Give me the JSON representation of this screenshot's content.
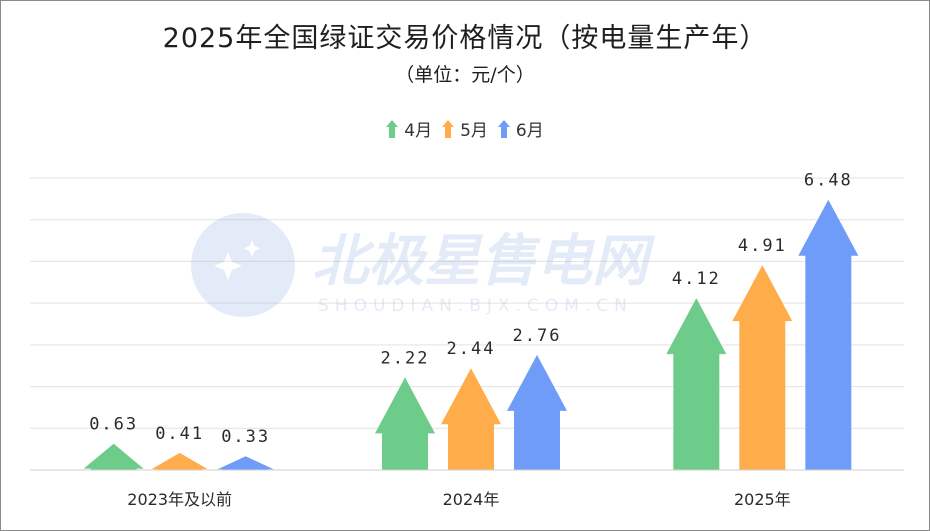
{
  "chart_data": {
    "type": "bar",
    "title": "2025年全国绿证交易价格情况（按电量生产年）",
    "subtitle": "（单位：元/个）",
    "categories": [
      "2023年及以前",
      "2024年",
      "2025年"
    ],
    "series": [
      {
        "name": "4月",
        "values": [
          0.63,
          2.22,
          4.12
        ],
        "label_text": [
          "0.63",
          "2.22",
          "4.12"
        ],
        "color": "#6dcc8a"
      },
      {
        "name": "5月",
        "values": [
          0.41,
          2.44,
          4.91
        ],
        "label_text": [
          "0.41",
          "2.44",
          "4.91"
        ],
        "color": "#ffad4a"
      },
      {
        "name": "6月",
        "values": [
          0.33,
          2.76,
          6.48
        ],
        "label_text": [
          "0.33",
          "2.76",
          "6.48"
        ],
        "color": "#6f9cf8"
      }
    ],
    "ylim": [
      0,
      7
    ],
    "grid": true,
    "legend_position": "top-center",
    "mark_shape": "arrow",
    "watermark": {
      "text": "北极星售电网",
      "url": "SHOUDIAN.BJX.COM.CN"
    }
  }
}
